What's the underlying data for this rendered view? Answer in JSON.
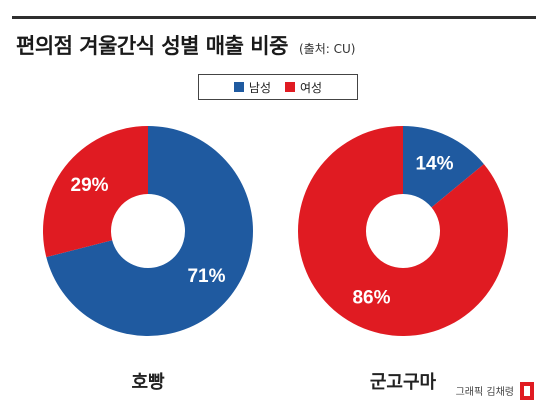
{
  "header": {
    "title": "편의점 겨울간식 성별 매출 비중",
    "source": "(출처: CU)"
  },
  "legend": {
    "items": [
      {
        "label": "남성",
        "color": "#1f5aa0"
      },
      {
        "label": "여성",
        "color": "#e01b22"
      }
    ]
  },
  "footer": {
    "credit": "그래픽 김채령",
    "logo_color": "#e01b22"
  },
  "chart_data": {
    "type": "pie",
    "style": "donut",
    "series_names": [
      "남성",
      "여성"
    ],
    "colors": {
      "남성": "#1f5aa0",
      "여성": "#e01b22"
    },
    "charts": [
      {
        "category": "호빵",
        "slices": [
          {
            "name": "남성",
            "value": 71,
            "label": "71%"
          },
          {
            "name": "여성",
            "value": 29,
            "label": "29%"
          }
        ]
      },
      {
        "category": "군고구마",
        "slices": [
          {
            "name": "남성",
            "value": 14,
            "label": "14%"
          },
          {
            "name": "여성",
            "value": 86,
            "label": "86%"
          }
        ]
      }
    ]
  }
}
